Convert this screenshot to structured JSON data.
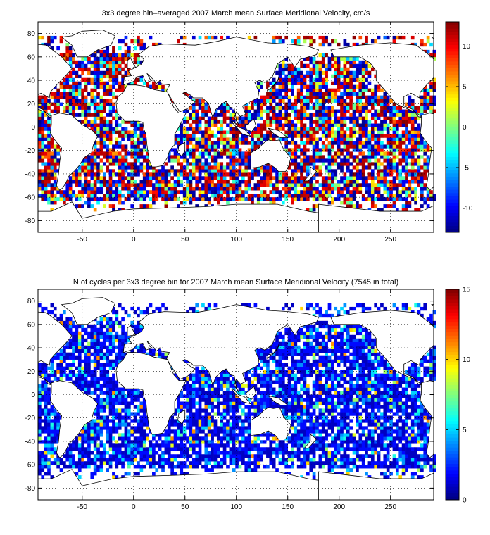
{
  "chart_data": [
    {
      "type": "heatmap",
      "title": "3x3 degree bin–averaged 2007 March mean Surface Meridional Velocity, cm/s",
      "xlabel": "",
      "ylabel": "",
      "xlim": [
        -93,
        292
      ],
      "ylim": [
        -90,
        90
      ],
      "xticks": [
        -50,
        0,
        50,
        100,
        150,
        200,
        250
      ],
      "yticks": [
        -80,
        -60,
        -40,
        -20,
        0,
        20,
        40,
        60,
        80
      ],
      "grid": true,
      "grid_style": "dotted",
      "colormap": "jet",
      "colorbar": {
        "range": [
          -13,
          13
        ],
        "ticks": [
          -10,
          -5,
          0,
          5,
          10
        ],
        "position": "right"
      },
      "bin_size_deg": 3,
      "values_note": "Dense scattered grid of 3x3 degree ocean bins with values spanning -13 to 13 cm/s; individual bin values not legible"
    },
    {
      "type": "heatmap",
      "title": "N of cycles per 3x3 degree bin for 2007 March mean Surface Meridional Velocity (7545 in total)",
      "xlabel": "",
      "ylabel": "",
      "xlim": [
        -93,
        292
      ],
      "ylim": [
        -90,
        90
      ],
      "xticks": [
        -50,
        0,
        50,
        100,
        150,
        200,
        250
      ],
      "yticks": [
        -80,
        -60,
        -40,
        -20,
        0,
        20,
        40,
        60,
        80
      ],
      "grid": true,
      "grid_style": "dotted",
      "colormap": "jet",
      "colorbar": {
        "range": [
          0,
          15
        ],
        "ticks": [
          0,
          5,
          10,
          15
        ],
        "position": "right"
      },
      "bin_size_deg": 3,
      "total_cycles": 7545,
      "values_note": "Mostly 1-3 cycles per bin (blue), occasional higher counts up to ~15"
    }
  ]
}
